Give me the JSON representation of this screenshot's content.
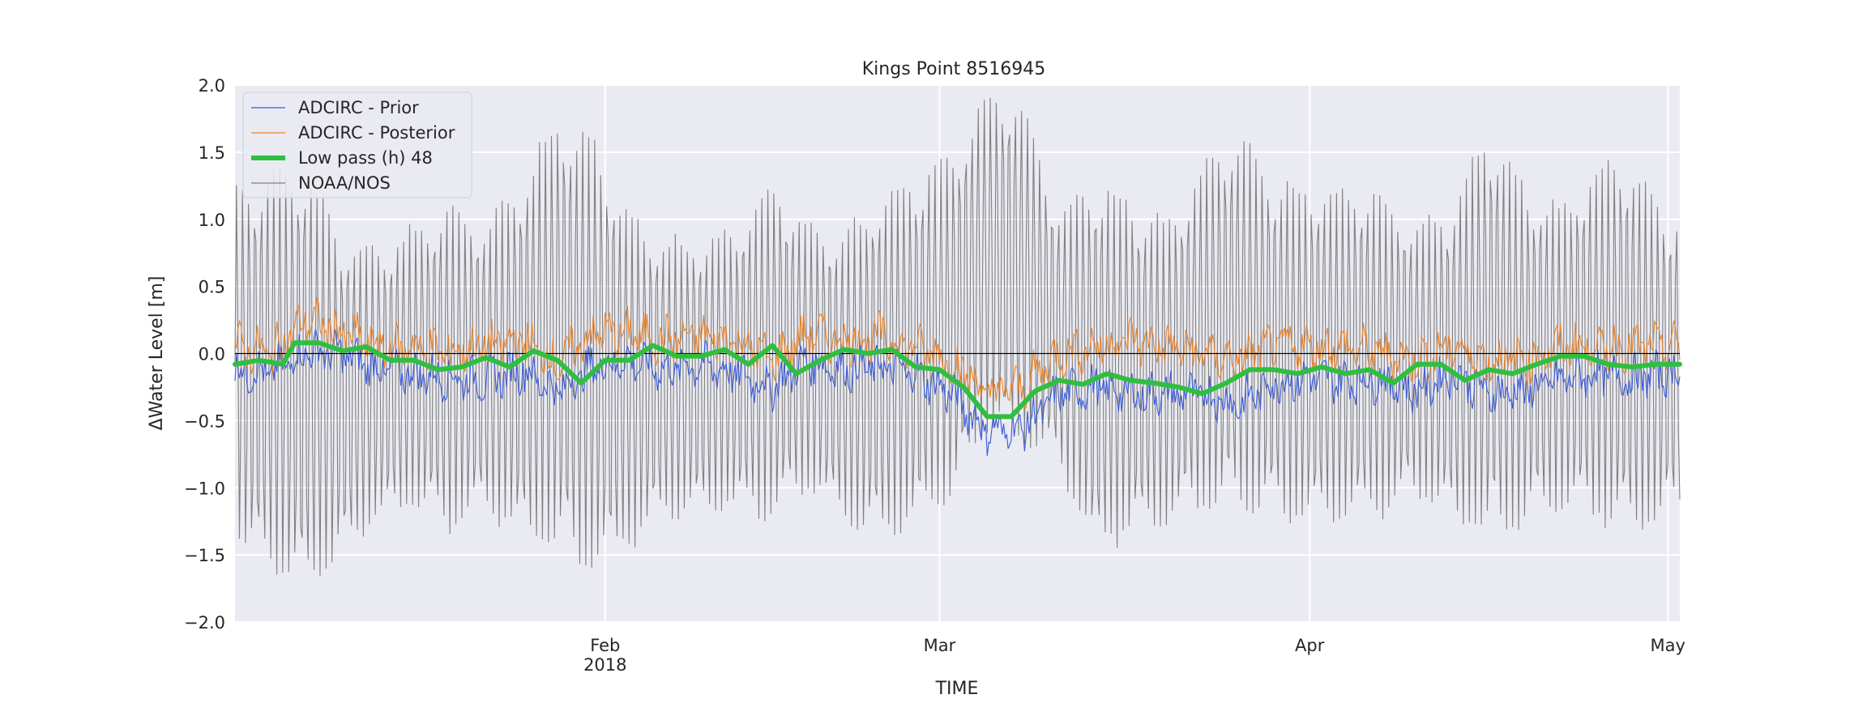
{
  "chart_data": {
    "type": "line",
    "title": "Kings Point  8516945",
    "xlabel": "TIME",
    "ylabel": "ΔWater Level [m]",
    "ylim": [
      -2.0,
      2.0
    ],
    "xlim": [
      "2018-01-01",
      "2018-05-02"
    ],
    "y_ticks": [
      -2.0,
      -1.5,
      -1.0,
      -0.5,
      0.0,
      0.5,
      1.0,
      1.5,
      2.0
    ],
    "y_tick_labels": [
      "−2.0",
      "−1.5",
      "−1.0",
      "−0.5",
      "0.0",
      "0.5",
      "1.0",
      "1.5",
      "2.0"
    ],
    "x_ticks": [
      {
        "date": "2018-02-01",
        "label": "Feb",
        "sublabel": "2018"
      },
      {
        "date": "2018-03-01",
        "label": "Mar",
        "sublabel": ""
      },
      {
        "date": "2018-04-01",
        "label": "Apr",
        "sublabel": ""
      },
      {
        "date": "2018-05-01",
        "label": "May",
        "sublabel": ""
      }
    ],
    "grid": true,
    "legend_position": "top-left",
    "series": [
      {
        "name": "ADCIRC - Prior",
        "color": "#3a5bd9",
        "style": "thin",
        "x": [
          "2018-01-01",
          "2018-01-04",
          "2018-01-07",
          "2018-01-10",
          "2018-01-13",
          "2018-01-16",
          "2018-01-19",
          "2018-01-22",
          "2018-01-25",
          "2018-01-28",
          "2018-01-31",
          "2018-02-03",
          "2018-02-06",
          "2018-02-09",
          "2018-02-12",
          "2018-02-15",
          "2018-02-18",
          "2018-02-21",
          "2018-02-24",
          "2018-02-27",
          "2018-03-02",
          "2018-03-05",
          "2018-03-08",
          "2018-03-11",
          "2018-03-14",
          "2018-03-17",
          "2018-03-20",
          "2018-03-23",
          "2018-03-26",
          "2018-03-29",
          "2018-04-01",
          "2018-04-04",
          "2018-04-07",
          "2018-04-10",
          "2018-04-13",
          "2018-04-16",
          "2018-04-19",
          "2018-04-22",
          "2018-04-25",
          "2018-04-28",
          "2018-05-01"
        ],
        "values": [
          -0.12,
          -0.15,
          0.02,
          0.0,
          -0.12,
          -0.15,
          -0.18,
          -0.2,
          -0.12,
          -0.28,
          -0.1,
          -0.05,
          -0.12,
          -0.08,
          -0.15,
          -0.25,
          -0.05,
          -0.12,
          -0.1,
          -0.15,
          -0.3,
          -0.58,
          -0.55,
          -0.3,
          -0.25,
          -0.3,
          -0.3,
          -0.3,
          -0.38,
          -0.22,
          -0.18,
          -0.2,
          -0.2,
          -0.28,
          -0.15,
          -0.3,
          -0.28,
          -0.2,
          -0.15,
          -0.18,
          -0.15
        ]
      },
      {
        "name": "ADCIRC - Posterior",
        "color": "#e8832a",
        "style": "thin",
        "x": [
          "2018-01-01",
          "2018-01-04",
          "2018-01-07",
          "2018-01-10",
          "2018-01-13",
          "2018-01-16",
          "2018-01-19",
          "2018-01-22",
          "2018-01-25",
          "2018-01-28",
          "2018-01-31",
          "2018-02-03",
          "2018-02-06",
          "2018-02-09",
          "2018-02-12",
          "2018-02-15",
          "2018-02-18",
          "2018-02-21",
          "2018-02-24",
          "2018-02-27",
          "2018-03-02",
          "2018-03-05",
          "2018-03-08",
          "2018-03-11",
          "2018-03-14",
          "2018-03-17",
          "2018-03-20",
          "2018-03-23",
          "2018-03-26",
          "2018-03-29",
          "2018-04-01",
          "2018-04-04",
          "2018-04-07",
          "2018-04-10",
          "2018-04-13",
          "2018-04-16",
          "2018-04-19",
          "2018-04-22",
          "2018-04-25",
          "2018-04-28",
          "2018-05-01"
        ],
        "values": [
          0.05,
          0.0,
          0.25,
          0.15,
          0.05,
          0.05,
          0.0,
          0.05,
          0.1,
          -0.08,
          0.15,
          0.15,
          0.1,
          0.12,
          0.1,
          -0.05,
          0.15,
          0.1,
          0.12,
          0.05,
          -0.05,
          -0.3,
          -0.25,
          0.0,
          0.05,
          0.1,
          0.05,
          0.0,
          -0.05,
          0.05,
          0.05,
          0.05,
          0.0,
          -0.05,
          0.05,
          -0.05,
          -0.05,
          0.05,
          0.05,
          0.05,
          0.05
        ]
      },
      {
        "name": "Low pass (h) 48",
        "color": "#2fbf3f",
        "style": "thick",
        "x": [
          "2018-01-01",
          "2018-01-03",
          "2018-01-05",
          "2018-01-06",
          "2018-01-08",
          "2018-01-10",
          "2018-01-12",
          "2018-01-14",
          "2018-01-16",
          "2018-01-18",
          "2018-01-20",
          "2018-01-22",
          "2018-01-24",
          "2018-01-26",
          "2018-01-28",
          "2018-01-30",
          "2018-02-01",
          "2018-02-03",
          "2018-02-05",
          "2018-02-07",
          "2018-02-09",
          "2018-02-11",
          "2018-02-13",
          "2018-02-15",
          "2018-02-17",
          "2018-02-19",
          "2018-02-21",
          "2018-02-23",
          "2018-02-25",
          "2018-02-27",
          "2018-03-01",
          "2018-03-03",
          "2018-03-05",
          "2018-03-07",
          "2018-03-09",
          "2018-03-11",
          "2018-03-13",
          "2018-03-15",
          "2018-03-17",
          "2018-03-19",
          "2018-03-21",
          "2018-03-23",
          "2018-03-25",
          "2018-03-27",
          "2018-03-29",
          "2018-03-31",
          "2018-04-02",
          "2018-04-04",
          "2018-04-06",
          "2018-04-08",
          "2018-04-10",
          "2018-04-12",
          "2018-04-14",
          "2018-04-16",
          "2018-04-18",
          "2018-04-20",
          "2018-04-22",
          "2018-04-24",
          "2018-04-26",
          "2018-04-28",
          "2018-04-30",
          "2018-05-02"
        ],
        "values": [
          -0.08,
          -0.05,
          -0.08,
          0.08,
          0.08,
          0.02,
          0.05,
          -0.05,
          -0.05,
          -0.12,
          -0.1,
          -0.03,
          -0.1,
          0.02,
          -0.05,
          -0.22,
          -0.05,
          -0.05,
          0.06,
          -0.02,
          -0.02,
          0.03,
          -0.08,
          0.06,
          -0.15,
          -0.05,
          0.03,
          0.0,
          0.03,
          -0.1,
          -0.12,
          -0.25,
          -0.47,
          -0.47,
          -0.28,
          -0.2,
          -0.23,
          -0.15,
          -0.2,
          -0.22,
          -0.25,
          -0.3,
          -0.22,
          -0.12,
          -0.12,
          -0.15,
          -0.1,
          -0.15,
          -0.12,
          -0.22,
          -0.08,
          -0.08,
          -0.2,
          -0.12,
          -0.15,
          -0.08,
          -0.02,
          -0.02,
          -0.08,
          -0.1,
          -0.08,
          -0.08
        ]
      },
      {
        "name": "NOAA/NOS",
        "color": "#808080",
        "style": "thin",
        "x": [
          "2018-01-01",
          "2018-01-04",
          "2018-01-07",
          "2018-01-10",
          "2018-01-13",
          "2018-01-16",
          "2018-01-19",
          "2018-01-22",
          "2018-01-25",
          "2018-01-28",
          "2018-01-31",
          "2018-02-03",
          "2018-02-06",
          "2018-02-09",
          "2018-02-12",
          "2018-02-15",
          "2018-02-18",
          "2018-02-21",
          "2018-02-24",
          "2018-02-27",
          "2018-03-02",
          "2018-03-05",
          "2018-03-08",
          "2018-03-11",
          "2018-03-14",
          "2018-03-17",
          "2018-03-20",
          "2018-03-23",
          "2018-03-26",
          "2018-03-29",
          "2018-04-01",
          "2018-04-04",
          "2018-04-07",
          "2018-04-10",
          "2018-04-13",
          "2018-04-16",
          "2018-04-19",
          "2018-04-22",
          "2018-04-25",
          "2018-04-28",
          "2018-05-01"
        ],
        "values_high": [
          1.3,
          1.4,
          1.5,
          0.9,
          0.85,
          1.0,
          1.2,
          1.0,
          1.35,
          1.85,
          1.7,
          1.1,
          0.9,
          0.9,
          1.0,
          1.35,
          1.0,
          0.95,
          1.25,
          1.4,
          1.55,
          2.0,
          1.95,
          1.1,
          1.35,
          1.2,
          1.05,
          1.45,
          1.7,
          1.35,
          1.3,
          1.3,
          1.25,
          1.0,
          1.15,
          1.75,
          1.3,
          1.15,
          1.45,
          1.5,
          1.1
        ],
        "values_low": [
          -1.45,
          -1.7,
          -1.85,
          -1.55,
          -1.3,
          -1.2,
          -1.4,
          -1.2,
          -1.45,
          -1.55,
          -1.75,
          -1.5,
          -1.25,
          -1.25,
          -1.2,
          -1.3,
          -1.05,
          -1.3,
          -1.45,
          -1.35,
          -1.15,
          -0.6,
          -0.75,
          -0.9,
          -1.55,
          -1.4,
          -1.35,
          -1.2,
          -1.2,
          -1.25,
          -1.35,
          -1.3,
          -1.25,
          -1.1,
          -1.3,
          -1.45,
          -1.3,
          -1.2,
          -1.3,
          -1.4,
          -1.25
        ]
      }
    ]
  }
}
